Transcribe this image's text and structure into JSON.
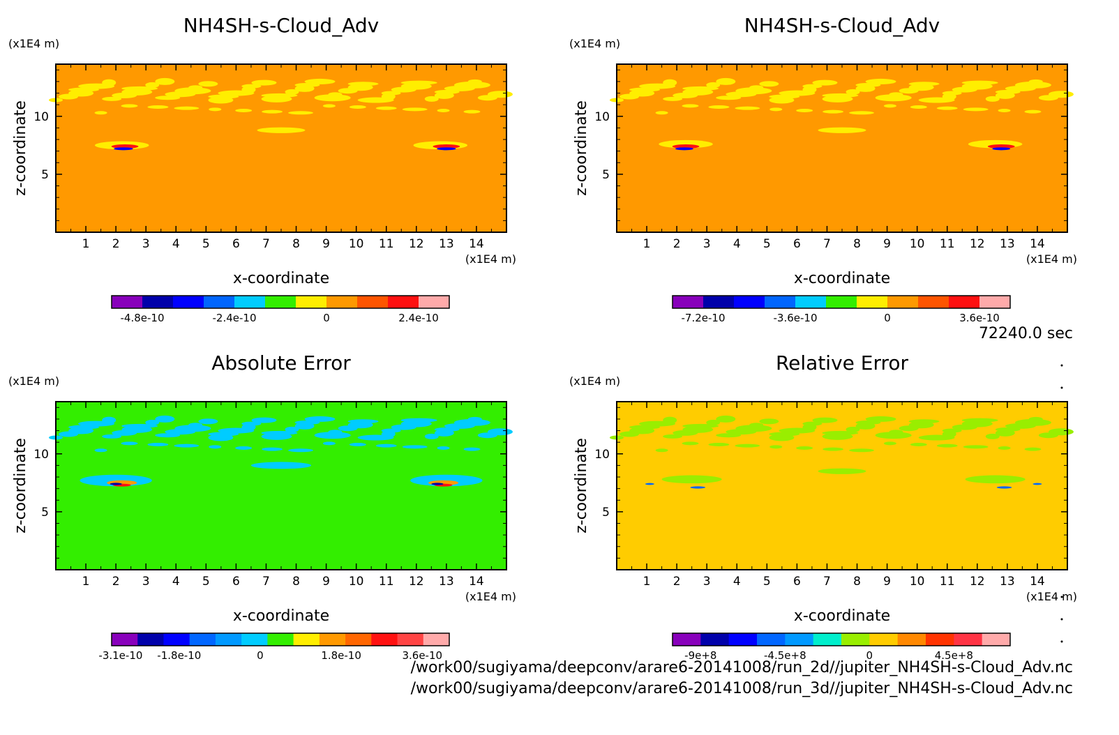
{
  "chart_data": [
    {
      "type": "heatmap",
      "title": "NH4SH-s-Cloud_Adv",
      "xlabel": "x-coordinate",
      "ylabel": "z-coordinate",
      "x_unit": "(x1E4 m)",
      "y_unit": "(x1E4 m)",
      "xlim": [
        0,
        15
      ],
      "ylim": [
        0,
        14.5
      ],
      "x_ticks": [
        "1",
        "2",
        "3",
        "4",
        "5",
        "6",
        "7",
        "8",
        "9",
        "10",
        "11",
        "12",
        "13",
        "14"
      ],
      "y_ticks": [
        "5",
        "10"
      ],
      "background_color": "#ff9900",
      "colorbar": {
        "colors": [
          "#8800bb",
          "#0000aa",
          "#0000ff",
          "#0066ff",
          "#00ccff",
          "#33ee00",
          "#ffee00",
          "#ff9900",
          "#ff5500",
          "#ff1111",
          "#ffaaaa"
        ],
        "labels": [
          "-4.8e-10",
          "-2.4e-10",
          "0",
          "2.4e-10"
        ],
        "label_values": [
          -4.8e-10,
          -2.4e-10,
          0,
          2.4e-10
        ],
        "range": [
          -5.6e-10,
          3.2e-10
        ]
      }
    },
    {
      "type": "heatmap",
      "title": "NH4SH-s-Cloud_Adv",
      "xlabel": "x-coordinate",
      "ylabel": "z-coordinate",
      "x_unit": "(x1E4 m)",
      "y_unit": "(x1E4 m)",
      "xlim": [
        0,
        15
      ],
      "ylim": [
        0,
        14.5
      ],
      "x_ticks": [
        "1",
        "2",
        "3",
        "4",
        "5",
        "6",
        "7",
        "8",
        "9",
        "10",
        "11",
        "12",
        "13",
        "14"
      ],
      "y_ticks": [
        "5",
        "10"
      ],
      "background_color": "#ff9900",
      "colorbar": {
        "colors": [
          "#8800bb",
          "#0000aa",
          "#0000ff",
          "#0066ff",
          "#00ccff",
          "#33ee00",
          "#ffee00",
          "#ff9900",
          "#ff5500",
          "#ff1111",
          "#ffaaaa"
        ],
        "labels": [
          "-7.2e-10",
          "-3.6e-10",
          "0",
          "3.6e-10"
        ],
        "label_values": [
          -7.2e-10,
          -3.6e-10,
          0,
          3.6e-10
        ],
        "range": [
          -8.4e-10,
          4.8e-10
        ]
      }
    },
    {
      "type": "heatmap",
      "title": "Absolute Error",
      "xlabel": "x-coordinate",
      "ylabel": "z-coordinate",
      "x_unit": "(x1E4 m)",
      "y_unit": "(x1E4 m)",
      "xlim": [
        0,
        15
      ],
      "ylim": [
        0,
        14.5
      ],
      "x_ticks": [
        "1",
        "2",
        "3",
        "4",
        "5",
        "6",
        "7",
        "8",
        "9",
        "10",
        "11",
        "12",
        "13",
        "14"
      ],
      "y_ticks": [
        "5",
        "10"
      ],
      "background_color": "#33ee00",
      "colorbar": {
        "colors": [
          "#8800bb",
          "#0000aa",
          "#0000ff",
          "#0066ff",
          "#0099ff",
          "#00ccff",
          "#33ee00",
          "#ffee00",
          "#ff9900",
          "#ff6600",
          "#ff1111",
          "#ff4444",
          "#ffaaaa"
        ],
        "labels": [
          "-3.1e-10",
          "-1.8e-10",
          "0",
          "1.8e-10",
          "3.6e-10"
        ],
        "label_values": [
          -3.1e-10,
          -1.8e-10,
          0,
          1.8e-10,
          3.6e-10
        ],
        "range": [
          -3.3e-10,
          4.2e-10
        ]
      }
    },
    {
      "type": "heatmap",
      "title": "Relative Error",
      "xlabel": "x-coordinate",
      "ylabel": "z-coordinate",
      "x_unit": "(x1E4 m)",
      "y_unit": "(x1E4 m)",
      "xlim": [
        0,
        15
      ],
      "ylim": [
        0,
        14.5
      ],
      "x_ticks": [
        "1",
        "2",
        "3",
        "4",
        "5",
        "6",
        "7",
        "8",
        "9",
        "10",
        "11",
        "12",
        "13",
        "14"
      ],
      "y_ticks": [
        "5",
        "10"
      ],
      "background_color": "#ffcc00",
      "colorbar": {
        "colors": [
          "#8800bb",
          "#0000aa",
          "#0000ff",
          "#0066ff",
          "#0099ff",
          "#00eecc",
          "#99ee00",
          "#ffcc00",
          "#ff8800",
          "#ff3300",
          "#ff3344",
          "#ffaaaa"
        ],
        "labels": [
          "-9e+8",
          "-4.5e+8",
          "0",
          "4.5e+8"
        ],
        "label_values": [
          -900000000.0,
          -450000000.0,
          0,
          450000000.0
        ],
        "range": [
          -1050000000.0,
          750000000.0
        ]
      }
    }
  ],
  "time_label": "72240.0 sec",
  "file_paths": [
    "/work00/sugiyama/deepconv/arare6-20141008/run_2d//jupiter_NH4SH-s-Cloud_Adv.nc",
    "/work00/sugiyama/deepconv/arare6-20141008/run_3d//jupiter_NH4SH-s-Cloud_Adv.nc"
  ]
}
